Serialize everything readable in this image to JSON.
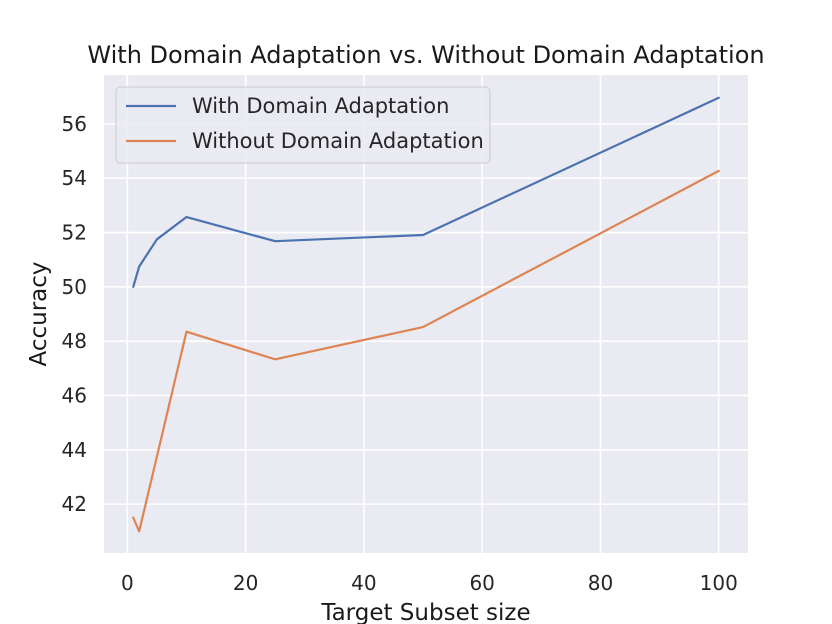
{
  "chart_data": {
    "type": "line",
    "title": "With Domain Adaptation vs. Without Domain Adaptation",
    "xlabel": "Target Subset size",
    "ylabel": "Accuracy",
    "xlim": [
      -3.95,
      104.95
    ],
    "ylim": [
      40.2,
      57.8
    ],
    "xticks": [
      0,
      20,
      40,
      60,
      80,
      100
    ],
    "yticks": [
      42,
      44,
      46,
      48,
      50,
      52,
      54,
      56
    ],
    "grid": true,
    "legend_position": "top-left",
    "series": [
      {
        "name": "With Domain Adaptation",
        "color": "#4c72b0",
        "x": [
          1,
          2,
          5,
          10,
          25,
          50,
          100
        ],
        "y": [
          50.0,
          50.75,
          51.75,
          52.57,
          51.68,
          51.91,
          56.96
        ]
      },
      {
        "name": "Without Domain Adaptation",
        "color": "#dd8452",
        "x": [
          1,
          2,
          10,
          25,
          50,
          100
        ],
        "y": [
          41.5,
          41.0,
          48.35,
          47.33,
          48.52,
          54.27
        ]
      }
    ]
  }
}
